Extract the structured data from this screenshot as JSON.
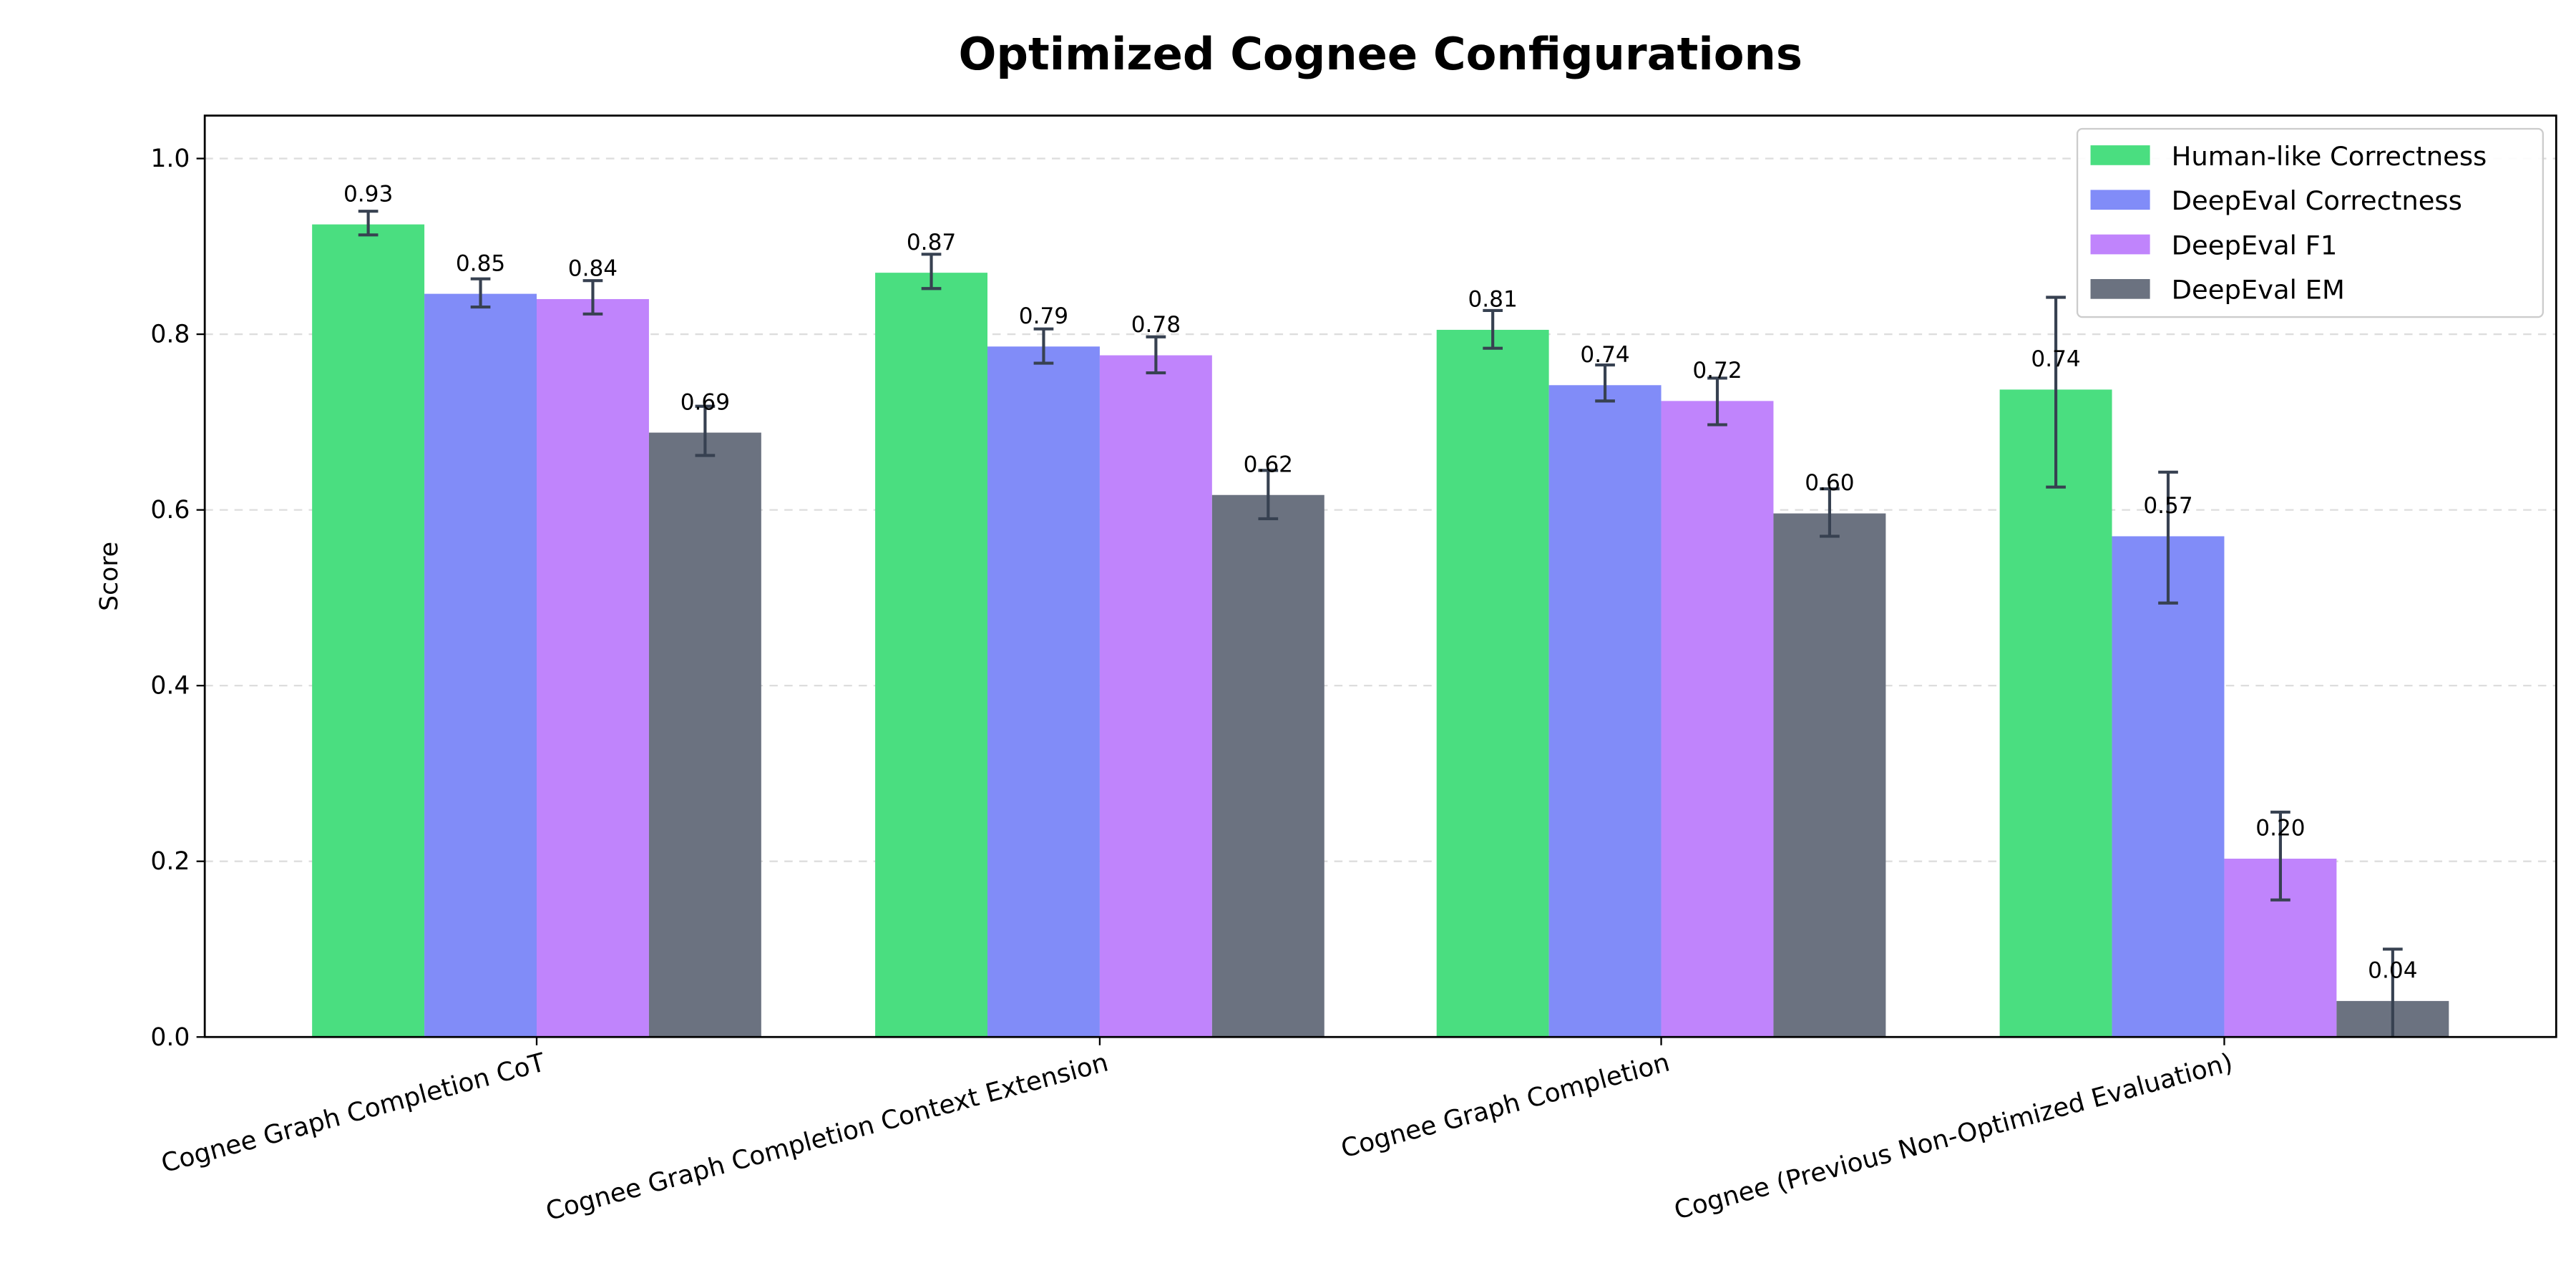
{
  "chart_data": {
    "type": "bar",
    "title": "Optimized Cognee Configurations",
    "xlabel": "",
    "ylabel": "Score",
    "ylim": [
      0,
      1.05
    ],
    "yticks": [
      0.0,
      0.2,
      0.4,
      0.6,
      0.8,
      1.0
    ],
    "ytick_labels": [
      "0.0",
      "0.2",
      "0.4",
      "0.6",
      "0.8",
      "1.0"
    ],
    "grid": "y-dashed",
    "legend_placement": "top-right",
    "categories": [
      "Cognee Graph Completion CoT",
      "Cognee Graph Completion Context Extension",
      "Cognee Graph Completion",
      "Cognee (Previous Non-Optimized Evaluation)"
    ],
    "series": [
      {
        "name": "Human-like Correctness",
        "color": "#4ade80",
        "values": [
          0.925,
          0.87,
          0.805,
          0.737
        ],
        "err_low": [
          0.913,
          0.852,
          0.784,
          0.626
        ],
        "err_high": [
          0.94,
          0.891,
          0.827,
          0.842
        ],
        "labels": [
          "0.93",
          "0.87",
          "0.81",
          "0.74"
        ]
      },
      {
        "name": "DeepEval Correctness",
        "color": "#818cf8",
        "values": [
          0.846,
          0.786,
          0.742,
          0.57
        ],
        "err_low": [
          0.831,
          0.767,
          0.724,
          0.494
        ],
        "err_high": [
          0.863,
          0.806,
          0.765,
          0.643
        ],
        "labels": [
          "0.85",
          "0.79",
          "0.74",
          "0.57"
        ]
      },
      {
        "name": "DeepEval F1",
        "color": "#c084fc",
        "values": [
          0.84,
          0.776,
          0.724,
          0.203
        ],
        "err_low": [
          0.823,
          0.756,
          0.697,
          0.156
        ],
        "err_high": [
          0.861,
          0.797,
          0.75,
          0.256
        ],
        "labels": [
          "0.84",
          "0.78",
          "0.72",
          "0.20"
        ]
      },
      {
        "name": "DeepEval EM",
        "color": "#6b7280",
        "values": [
          0.688,
          0.617,
          0.596,
          0.041
        ],
        "err_low": [
          0.662,
          0.59,
          0.57,
          -0.02
        ],
        "err_high": [
          0.718,
          0.645,
          0.624,
          0.1
        ],
        "labels": [
          "0.69",
          "0.62",
          "0.60",
          "0.04"
        ]
      }
    ],
    "error_bar_color": "#374151"
  }
}
